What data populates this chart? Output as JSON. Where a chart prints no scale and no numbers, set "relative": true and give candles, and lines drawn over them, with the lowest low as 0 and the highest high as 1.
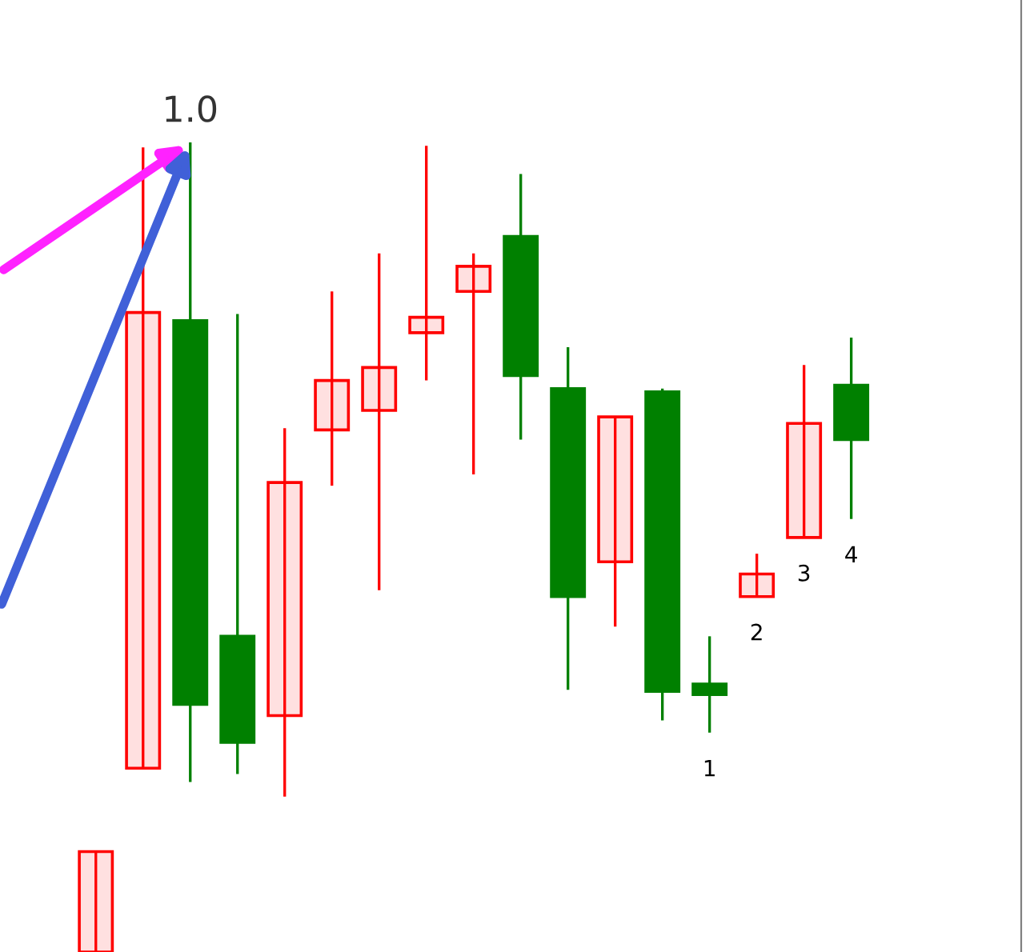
{
  "chart_data": {
    "type": "candlestick",
    "relative": true,
    "categories": [
      null,
      null,
      null,
      null,
      null,
      null,
      null,
      null,
      null,
      null,
      null,
      null,
      null,
      null,
      null,
      null,
      null
    ],
    "ohlc": [
      [
        0.0,
        0.124,
        0.0,
        0.124
      ],
      [
        0.227,
        0.994,
        0.227,
        0.79
      ],
      [
        0.78,
        1.0,
        0.21,
        0.306
      ],
      [
        0.39,
        0.788,
        0.22,
        0.259
      ],
      [
        0.292,
        0.647,
        0.192,
        0.58
      ],
      [
        0.645,
        0.816,
        0.576,
        0.706
      ],
      [
        0.669,
        0.863,
        0.447,
        0.722
      ],
      [
        0.765,
        0.996,
        0.706,
        0.784
      ],
      [
        0.816,
        0.863,
        0.59,
        0.847
      ],
      [
        0.884,
        0.961,
        0.633,
        0.712
      ],
      [
        0.696,
        0.747,
        0.324,
        0.439
      ],
      [
        0.482,
        0.661,
        0.402,
        0.661
      ],
      [
        0.692,
        0.696,
        0.286,
        0.322
      ],
      [
        0.331,
        0.39,
        0.271,
        0.318
      ],
      [
        0.439,
        0.492,
        0.439,
        0.467
      ],
      [
        0.512,
        0.725,
        0.512,
        0.653
      ],
      [
        0.7,
        0.759,
        0.535,
        0.633
      ]
    ],
    "colors": [
      "#ff0000",
      "#ff0000",
      "#008000",
      "#008000",
      "#ff0000",
      "#ff0000",
      "#ff0000",
      "#ff0000",
      "#ff0000",
      "#008000",
      "#008000",
      "#ff0000",
      "#008000",
      "#008000",
      "#ff0000",
      "#ff0000",
      "#008000"
    ],
    "annotations": [
      {
        "text": "1.0",
        "y": 1.0
      },
      {
        "text": "1",
        "y": 0.271
      },
      {
        "text": "2",
        "y": 0.439
      },
      {
        "text": "3",
        "y": 0.512
      },
      {
        "text": "4",
        "y": 0.535
      }
    ]
  }
}
